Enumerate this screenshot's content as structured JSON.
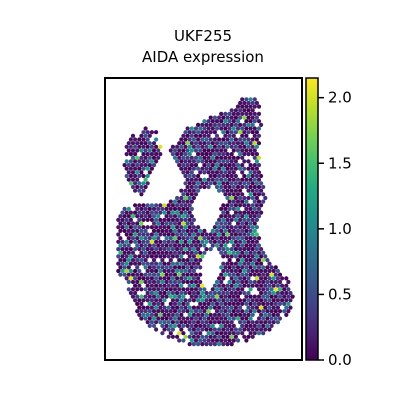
{
  "chart_data": {
    "type": "scatter",
    "title_line1": "UKF255",
    "title_line2": "AIDA expression",
    "xlabel": "",
    "ylabel": "",
    "colormap": "viridis",
    "color_range": [
      0,
      2.15
    ],
    "colorbar_ticks": [
      "0.0",
      "0.5",
      "1.0",
      "1.5",
      "2.0"
    ],
    "colorbar_tick_values": [
      0.0,
      0.5,
      1.0,
      1.5,
      2.0
    ],
    "frame_color": "#000000",
    "background": "#ffffff",
    "notes_on_values": "spot expression values in 0–2.15 range, mostly near 0"
  }
}
